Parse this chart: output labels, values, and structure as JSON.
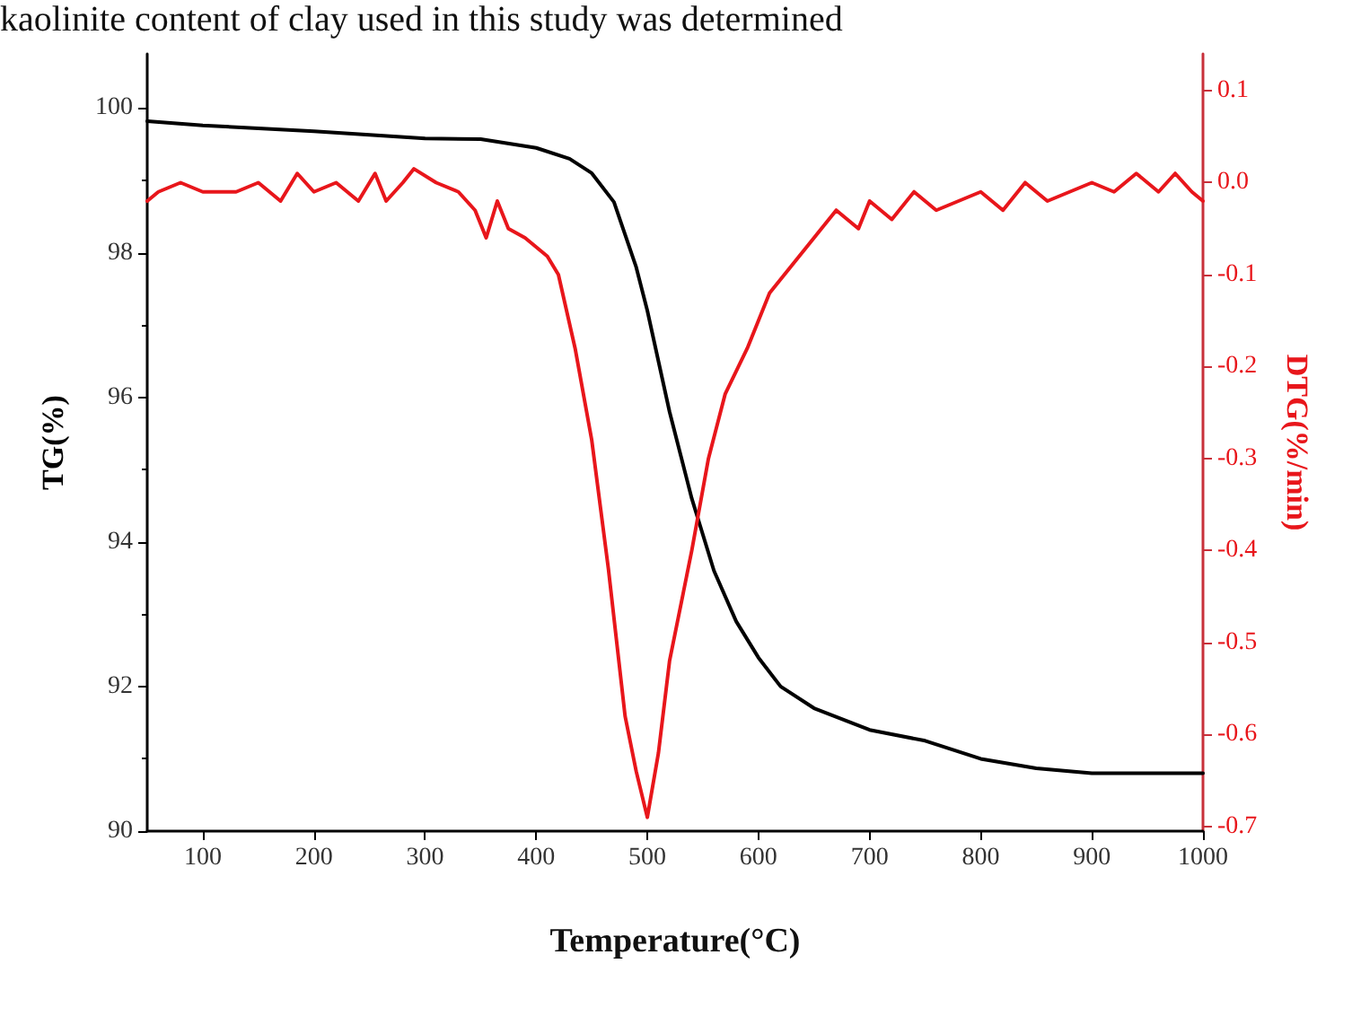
{
  "chart_data": {
    "type": "line",
    "xlabel": "Temperature(°C)",
    "ylabel": "TG(%)",
    "y2label": "DTG(%/min)",
    "annotations": [
      "kaolinite content of clay used in this study was determined"
    ],
    "xlim": [
      50,
      1000
    ],
    "xticks": [
      100,
      200,
      300,
      400,
      500,
      600,
      700,
      800,
      900,
      1000
    ],
    "ylim": [
      90,
      100.75
    ],
    "yticks": [
      90,
      92,
      94,
      96,
      98,
      100
    ],
    "y2lim": [
      -0.705,
      0.14
    ],
    "y2ticks": [
      -0.7,
      -0.6,
      -0.5,
      -0.4,
      -0.3,
      -0.2,
      -0.1,
      {
        "value": 0,
        "label": "0.0"
      },
      0.1
    ],
    "grid": false,
    "marker": "none",
    "line_style": "solid",
    "series": [
      {
        "color": "#000000",
        "x": [
          50,
          100,
          150,
          200,
          250,
          300,
          350,
          400,
          430,
          450,
          470,
          490,
          500,
          520,
          540,
          560,
          580,
          600,
          620,
          650,
          700,
          750,
          800,
          850,
          900,
          950,
          1000
        ],
        "values": [
          99.82,
          99.76,
          99.72,
          99.68,
          99.63,
          99.58,
          99.57,
          99.45,
          99.3,
          99.1,
          98.7,
          97.8,
          97.2,
          95.8,
          94.6,
          93.6,
          92.9,
          92.4,
          92.0,
          91.7,
          91.4,
          91.25,
          91.0,
          90.87,
          90.8,
          90.8,
          90.8
        ]
      },
      {
        "color": "#e8161b",
        "axis": "y2",
        "x": [
          50,
          60,
          80,
          100,
          130,
          150,
          170,
          185,
          200,
          220,
          240,
          255,
          265,
          280,
          290,
          310,
          330,
          345,
          355,
          365,
          375,
          390,
          410,
          420,
          435,
          450,
          465,
          480,
          490,
          500,
          510,
          520,
          540,
          555,
          570,
          590,
          600,
          610,
          630,
          650,
          670,
          690,
          700,
          720,
          740,
          760,
          780,
          800,
          820,
          840,
          860,
          880,
          900,
          920,
          940,
          960,
          975,
          990,
          1000
        ],
        "values": [
          -0.02,
          -0.01,
          0.0,
          -0.01,
          -0.01,
          0.0,
          -0.02,
          0.01,
          -0.01,
          0.0,
          -0.02,
          0.01,
          -0.02,
          0.0,
          0.015,
          0.0,
          -0.01,
          -0.03,
          -0.06,
          -0.02,
          -0.05,
          -0.06,
          -0.08,
          -0.1,
          -0.18,
          -0.28,
          -0.42,
          -0.58,
          -0.64,
          -0.69,
          -0.62,
          -0.52,
          -0.4,
          -0.3,
          -0.23,
          -0.18,
          -0.15,
          -0.12,
          -0.09,
          -0.06,
          -0.03,
          -0.05,
          -0.02,
          -0.04,
          -0.01,
          -0.03,
          -0.02,
          -0.01,
          -0.03,
          0.0,
          -0.02,
          -0.01,
          0.0,
          -0.01,
          0.01,
          -0.01,
          0.01,
          -0.01,
          -0.02
        ]
      }
    ]
  }
}
